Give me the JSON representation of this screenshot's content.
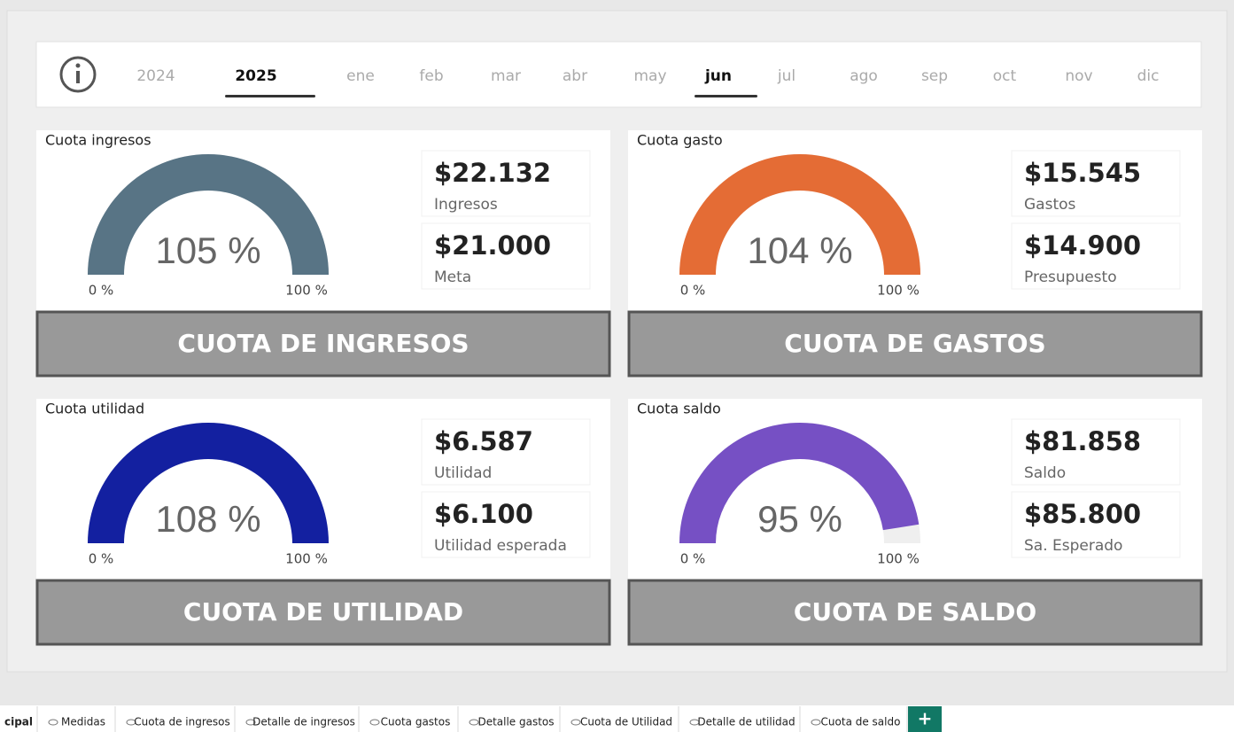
{
  "slicer": {
    "years": [
      {
        "label": "2024",
        "selected": false
      },
      {
        "label": "2025",
        "selected": true
      }
    ],
    "months": [
      {
        "label": "ene",
        "selected": false
      },
      {
        "label": "feb",
        "selected": false
      },
      {
        "label": "mar",
        "selected": false
      },
      {
        "label": "abr",
        "selected": false
      },
      {
        "label": "may",
        "selected": false
      },
      {
        "label": "jun",
        "selected": true
      },
      {
        "label": "jul",
        "selected": false
      },
      {
        "label": "ago",
        "selected": false
      },
      {
        "label": "sep",
        "selected": false
      },
      {
        "label": "oct",
        "selected": false
      },
      {
        "label": "nov",
        "selected": false
      },
      {
        "label": "dic",
        "selected": false
      }
    ]
  },
  "cards": [
    {
      "title": "Cuota ingresos",
      "color": "#587485",
      "gauge": {
        "value": 105,
        "value_label": "105 %",
        "min": 0,
        "min_label": "0 %",
        "max": 100,
        "max_label": "100 %"
      },
      "kpis": [
        {
          "value": "$22.132",
          "label": "Ingresos"
        },
        {
          "value": "$21.000",
          "label": "Meta"
        }
      ],
      "banner": "CUOTA DE INGRESOS"
    },
    {
      "title": "Cuota gasto",
      "color": "#e46c35",
      "gauge": {
        "value": 104,
        "value_label": "104 %",
        "min": 0,
        "min_label": "0 %",
        "max": 100,
        "max_label": "100 %"
      },
      "kpis": [
        {
          "value": "$15.545",
          "label": "Gastos"
        },
        {
          "value": "$14.900",
          "label": "Presupuesto"
        }
      ],
      "banner": "CUOTA DE GASTOS"
    },
    {
      "title": "Cuota utilidad",
      "color": "#1320a0",
      "gauge": {
        "value": 108,
        "value_label": "108 %",
        "min": 0,
        "min_label": "0 %",
        "max": 100,
        "max_label": "100 %"
      },
      "kpis": [
        {
          "value": "$6.587",
          "label": "Utilidad"
        },
        {
          "value": "$6.100",
          "label": "Utilidad esperada"
        }
      ],
      "banner": "CUOTA DE UTILIDAD"
    },
    {
      "title": "Cuota saldo",
      "color": "#7650c4",
      "gauge": {
        "value": 95,
        "value_label": "95 %",
        "min": 0,
        "min_label": "0 %",
        "max": 100,
        "max_label": "100 %"
      },
      "kpis": [
        {
          "value": "$81.858",
          "label": "Saldo"
        },
        {
          "value": "$85.800",
          "label": "Sa. Esperado"
        }
      ],
      "banner": "CUOTA DE SALDO"
    }
  ],
  "tabs": {
    "pages": [
      "cipal",
      "Medidas",
      "Cuota de ingresos",
      "Detalle de ingresos",
      "Cuota gastos",
      "Detalle gastos",
      "Cuota de Utilidad",
      "Detalle de utilidad",
      "Cuota de saldo"
    ],
    "add_button": "+"
  }
}
